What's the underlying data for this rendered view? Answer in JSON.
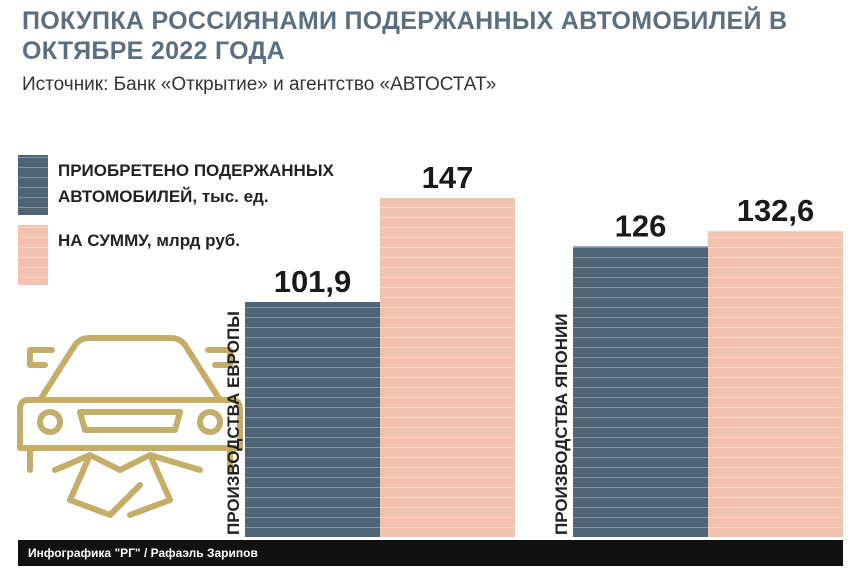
{
  "chart_data": {
    "type": "bar",
    "title": "ПОКУПКА РОССИЯНАМИ ПОДЕРЖАННЫХ АВТОМОБИЛЕЙ В ОКТЯБРЕ 2022 ГОДА",
    "subtitle": "Источник: Банк «Открытие» и агентство «АВТОСТАТ»",
    "categories": [
      "ПРОИЗВОДСТВА ЕВРОПЫ",
      "ПРОИЗВОДСТВА ЯПОНИИ"
    ],
    "series": [
      {
        "name": "ПРИОБРЕТЕНО ПОДЕРЖАННЫХ АВТОМОБИЛЕЙ, тыс. ед.",
        "color": "#4e6477",
        "values": [
          101.9,
          126
        ],
        "value_labels": [
          "101,9",
          "126"
        ]
      },
      {
        "name": "НА СУММУ, млрд руб.",
        "color": "#f3c1af",
        "values": [
          147,
          132.6
        ],
        "value_labels": [
          "147",
          "132,6"
        ]
      }
    ],
    "footer": "Инфографика \"РГ\" / Рафаэль Зарипов"
  }
}
